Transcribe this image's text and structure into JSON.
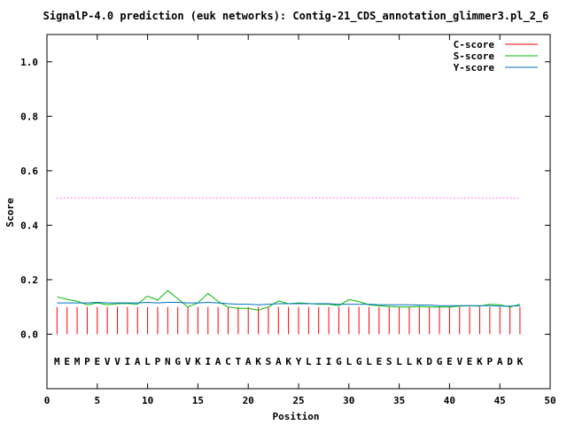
{
  "chart_data": {
    "type": "line",
    "title": "SignalP-4.0 prediction (euk networks): Contig-21_CDS_annotation_glimmer3.pl_2_6",
    "xlabel": "Position",
    "ylabel": "Score",
    "xlim": [
      0,
      50
    ],
    "ylim": [
      -0.2,
      1.1
    ],
    "xticks": [
      0,
      5,
      10,
      15,
      20,
      25,
      30,
      35,
      40,
      45,
      50
    ],
    "yticks": [
      0.0,
      0.2,
      0.4,
      0.6,
      0.8,
      1.0
    ],
    "ytick_labels": [
      "0.0",
      "0.2",
      "0.4",
      "0.6",
      "0.8",
      "1.0"
    ],
    "grid": false,
    "legend_position": "top-right",
    "threshold": 0.5,
    "threshold_color": "#ff00ff",
    "sequence_y": -0.1,
    "sequence": [
      "M",
      "E",
      "M",
      "P",
      "E",
      "V",
      "V",
      "I",
      "A",
      "L",
      "P",
      "N",
      "G",
      "V",
      "K",
      "I",
      "A",
      "C",
      "T",
      "A",
      "K",
      "S",
      "A",
      "K",
      "Y",
      "L",
      "I",
      "I",
      "G",
      "L",
      "G",
      "L",
      "E",
      "S",
      "L",
      "L",
      "K",
      "D",
      "G",
      "E",
      "V",
      "E",
      "K",
      "P",
      "A",
      "D",
      "K"
    ],
    "positions": [
      1,
      2,
      3,
      4,
      5,
      6,
      7,
      8,
      9,
      10,
      11,
      12,
      13,
      14,
      15,
      16,
      17,
      18,
      19,
      20,
      21,
      22,
      23,
      24,
      25,
      26,
      27,
      28,
      29,
      30,
      31,
      32,
      33,
      34,
      35,
      36,
      37,
      38,
      39,
      40,
      41,
      42,
      43,
      44,
      45,
      46,
      47
    ],
    "series": [
      {
        "name": "C-score",
        "color": "#ff0000",
        "style": "impulse",
        "values": [
          0.1,
          0.1,
          0.1,
          0.1,
          0.1,
          0.1,
          0.1,
          0.1,
          0.1,
          0.1,
          0.1,
          0.1,
          0.1,
          0.1,
          0.1,
          0.1,
          0.1,
          0.1,
          0.1,
          0.1,
          0.1,
          0.1,
          0.1,
          0.1,
          0.1,
          0.1,
          0.1,
          0.1,
          0.1,
          0.1,
          0.1,
          0.1,
          0.1,
          0.1,
          0.1,
          0.1,
          0.1,
          0.1,
          0.1,
          0.1,
          0.1,
          0.1,
          0.1,
          0.1,
          0.1,
          0.1,
          0.1
        ]
      },
      {
        "name": "S-score",
        "color": "#00bb00",
        "style": "line",
        "values": [
          0.137,
          0.128,
          0.121,
          0.108,
          0.115,
          0.108,
          0.112,
          0.113,
          0.11,
          0.14,
          0.125,
          0.16,
          0.13,
          0.1,
          0.115,
          0.15,
          0.12,
          0.1,
          0.095,
          0.095,
          0.088,
          0.1,
          0.122,
          0.112,
          0.115,
          0.113,
          0.11,
          0.11,
          0.105,
          0.127,
          0.12,
          0.108,
          0.105,
          0.102,
          0.1,
          0.1,
          0.102,
          0.1,
          0.1,
          0.1,
          0.103,
          0.105,
          0.103,
          0.11,
          0.108,
          0.1,
          0.11
        ]
      },
      {
        "name": "Y-score",
        "color": "#0070c0",
        "style": "line",
        "values": [
          0.115,
          0.115,
          0.115,
          0.115,
          0.117,
          0.115,
          0.115,
          0.115,
          0.115,
          0.117,
          0.115,
          0.117,
          0.117,
          0.115,
          0.115,
          0.117,
          0.115,
          0.112,
          0.11,
          0.11,
          0.108,
          0.11,
          0.112,
          0.112,
          0.112,
          0.112,
          0.112,
          0.112,
          0.11,
          0.11,
          0.11,
          0.11,
          0.108,
          0.108,
          0.108,
          0.108,
          0.107,
          0.107,
          0.105,
          0.105,
          0.105,
          0.105,
          0.105,
          0.105,
          0.103,
          0.103,
          0.105
        ]
      }
    ]
  }
}
